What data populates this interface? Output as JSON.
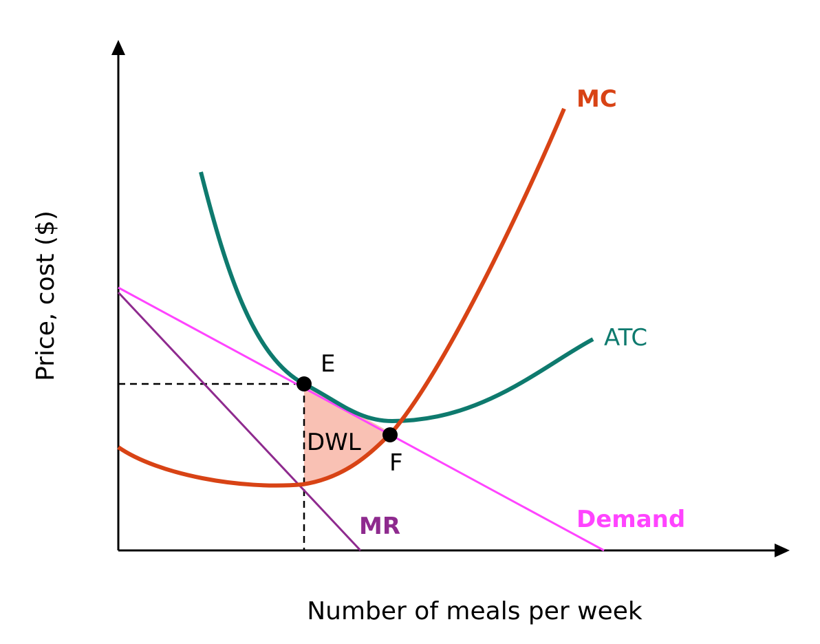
{
  "axes": {
    "x_label": "Number of meals per week",
    "y_label": "Price, cost ($)"
  },
  "curves": [
    {
      "label": "MC"
    },
    {
      "label": "ATC"
    },
    {
      "label": "Demand"
    },
    {
      "label": "MR"
    }
  ],
  "points": [
    {
      "label": "E"
    },
    {
      "label": "F"
    }
  ],
  "region": {
    "label": "DWL"
  }
}
